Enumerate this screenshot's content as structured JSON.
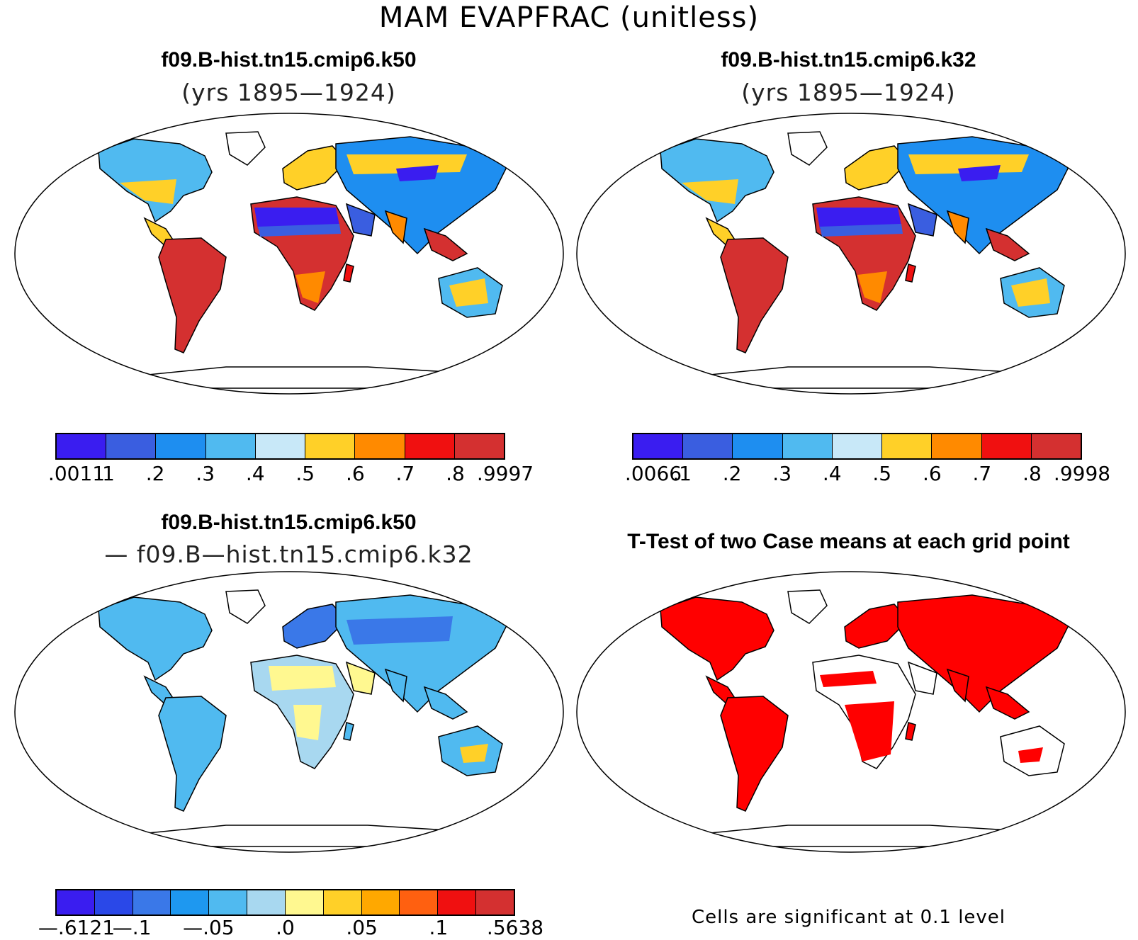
{
  "title": "MAM EVAPFRAC (unitless)",
  "panels": {
    "top_left": {
      "title": "f09.B-hist.tn15.cmip6.k50",
      "subtitle": "(yrs 1895—1924)"
    },
    "top_right": {
      "title": "f09.B-hist.tn15.cmip6.k32",
      "subtitle": "(yrs 1895—1924)"
    },
    "bottom_left": {
      "title": "f09.B-hist.tn15.cmip6.k50",
      "subtitle": "— f09.B—hist.tn15.cmip6.k32"
    },
    "bottom_right": {
      "title": "T-Test of two Case means at each grid point",
      "note": "Cells are significant at 0.1 level"
    }
  },
  "colorbars": {
    "top_left": {
      "colors": [
        "#3a1df0",
        "#3a5ee0",
        "#1e8ef0",
        "#50baf0",
        "#c8e8f8",
        "#ffd028",
        "#ff8a00",
        "#f01010",
        "#d43030"
      ],
      "labels": [
        ".0011",
        ".1",
        ".2",
        ".3",
        ".4",
        ".5",
        ".6",
        ".7",
        ".8",
        ".9997"
      ]
    },
    "top_right": {
      "colors": [
        "#3a1df0",
        "#3a5ee0",
        "#1e8ef0",
        "#50baf0",
        "#c8e8f8",
        "#ffd028",
        "#ff8a00",
        "#f01010",
        "#d43030"
      ],
      "labels": [
        ".0066",
        ".1",
        ".2",
        ".3",
        ".4",
        ".5",
        ".6",
        ".7",
        ".8",
        ".9998"
      ]
    },
    "bottom_left": {
      "colors": [
        "#3a1df0",
        "#2a48e8",
        "#3a78e8",
        "#1e98f0",
        "#50baf0",
        "#a8d8f0",
        "#fff890",
        "#ffd028",
        "#ffa800",
        "#ff6010",
        "#f01010",
        "#d43030"
      ],
      "labels": [
        "—.6121",
        "—.1",
        "—.05",
        ".0",
        ".05",
        ".1",
        ".5638"
      ]
    }
  },
  "map_colors": {
    "ocean": "#ffffff",
    "outline": "#000000",
    "significant": "#ff0000"
  }
}
